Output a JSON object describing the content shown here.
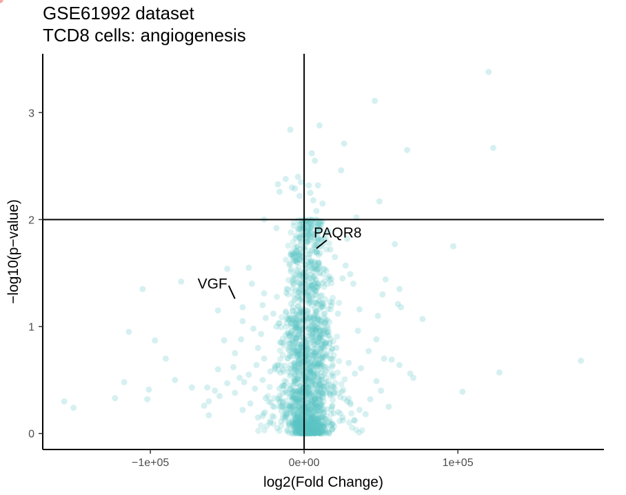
{
  "chart_data": {
    "type": "scatter",
    "title": "GSE61992 dataset",
    "subtitle": "TCD8 cells: angiogenesis",
    "xlabel": "log2(Fold Change)",
    "ylabel": "−log10(p−value)",
    "xlim": [
      -170000,
      195000
    ],
    "ylim": [
      -0.15,
      3.55
    ],
    "x_ticks": [
      {
        "value": -100000,
        "label": "−1e+05"
      },
      {
        "value": 0,
        "label": "0e+00"
      },
      {
        "value": 100000,
        "label": "1e+05"
      }
    ],
    "y_ticks": [
      {
        "value": 0,
        "label": "0"
      },
      {
        "value": 1,
        "label": "1"
      },
      {
        "value": 2,
        "label": "2"
      },
      {
        "value": 3,
        "label": "3"
      }
    ],
    "reference_lines": {
      "vertical_x": 0,
      "horizontal_y": 2
    },
    "colors": {
      "points": "#5bc3c6",
      "highlight": "#f4a7a0",
      "axis": "#000000"
    },
    "grid": false,
    "highlighted_points": [
      {
        "x": -45000,
        "y": 1.24
      },
      {
        "x": 8000,
        "y": 1.73
      },
      {
        "x": 47000,
        "y": 0.72
      },
      {
        "x": 60000,
        "y": 0.52
      },
      {
        "x": -13000,
        "y": 1.35
      },
      {
        "x": -14000,
        "y": 0.7
      },
      {
        "x": 12000,
        "y": 0.95
      },
      {
        "x": -5000,
        "y": 0.22
      }
    ],
    "labels": [
      {
        "text": "VGF",
        "x": -45000,
        "y": 1.24
      },
      {
        "text": "PAQR8",
        "x": 8000,
        "y": 1.73
      }
    ],
    "points": [
      [
        120000,
        3.38
      ],
      [
        46000,
        3.11
      ],
      [
        -9000,
        2.84
      ],
      [
        10000,
        2.88
      ],
      [
        26000,
        2.71
      ],
      [
        67000,
        2.65
      ],
      [
        123000,
        2.67
      ],
      [
        24000,
        2.46
      ],
      [
        -16000,
        2.26
      ],
      [
        -17000,
        2.33
      ],
      [
        -12000,
        2.38
      ],
      [
        -6000,
        2.29
      ],
      [
        -4000,
        2.4
      ],
      [
        5000,
        2.62
      ],
      [
        7000,
        2.55
      ],
      [
        49000,
        2.17
      ],
      [
        34000,
        2.02
      ],
      [
        12000,
        2.15
      ],
      [
        -26000,
        2.0
      ],
      [
        -18000,
        1.92
      ],
      [
        -8000,
        2.3
      ],
      [
        -3000,
        2.22
      ],
      [
        -2000,
        2.35
      ],
      [
        3000,
        2.32
      ],
      [
        4000,
        2.25
      ],
      [
        6000,
        2.18
      ],
      [
        8000,
        2.08
      ],
      [
        9000,
        2.32
      ],
      [
        11000,
        1.98
      ],
      [
        97000,
        1.75
      ],
      [
        59000,
        1.77
      ],
      [
        -36000,
        1.55
      ],
      [
        -50000,
        1.54
      ],
      [
        -105000,
        1.35
      ],
      [
        -80000,
        1.42
      ],
      [
        -34000,
        1.4
      ],
      [
        -26000,
        1.31
      ],
      [
        -40000,
        1.18
      ],
      [
        -27000,
        1.2
      ],
      [
        -56000,
        1.15
      ],
      [
        -40000,
        1.05
      ],
      [
        -25000,
        1.08
      ],
      [
        -20000,
        1.12
      ],
      [
        -33000,
        0.98
      ],
      [
        -28000,
        0.93
      ],
      [
        -41000,
        0.88
      ],
      [
        -52000,
        0.87
      ],
      [
        -30000,
        0.8
      ],
      [
        -45000,
        0.75
      ],
      [
        -26000,
        0.7
      ],
      [
        -31000,
        0.64
      ],
      [
        -46000,
        0.62
      ],
      [
        -36000,
        0.55
      ],
      [
        -22000,
        0.58
      ],
      [
        -27000,
        0.5
      ],
      [
        -39000,
        0.48
      ],
      [
        -32000,
        0.42
      ],
      [
        -45000,
        0.38
      ],
      [
        -25000,
        0.33
      ],
      [
        -35000,
        0.28
      ],
      [
        -40000,
        0.22
      ],
      [
        -30000,
        0.15
      ],
      [
        -22000,
        0.1
      ],
      [
        -63000,
        0.43
      ],
      [
        -58000,
        0.4
      ],
      [
        -62000,
        0.3
      ],
      [
        -65000,
        0.26
      ],
      [
        -62000,
        0.17
      ],
      [
        -55000,
        0.35
      ],
      [
        -50000,
        0.47
      ],
      [
        -42000,
        0.52
      ],
      [
        -114000,
        0.95
      ],
      [
        -97000,
        0.87
      ],
      [
        -90000,
        0.7
      ],
      [
        -84000,
        0.5
      ],
      [
        -117000,
        0.48
      ],
      [
        -101000,
        0.41
      ],
      [
        -102000,
        0.32
      ],
      [
        -123000,
        0.33
      ],
      [
        -156000,
        0.3
      ],
      [
        -150000,
        0.24
      ],
      [
        -73000,
        0.43
      ],
      [
        -56000,
        0.6
      ],
      [
        -18000,
        1.0
      ],
      [
        -15000,
        0.85
      ],
      [
        -19000,
        0.6
      ],
      [
        -16000,
        0.42
      ],
      [
        -15000,
        0.25
      ],
      [
        -12000,
        0.15
      ],
      [
        -10000,
        0.08
      ],
      [
        62000,
        1.35
      ],
      [
        53000,
        1.44
      ],
      [
        51000,
        1.3
      ],
      [
        61000,
        1.21
      ],
      [
        63000,
        1.18
      ],
      [
        77000,
        1.07
      ],
      [
        48000,
        1.1
      ],
      [
        36000,
        1.16
      ],
      [
        32000,
        1.4
      ],
      [
        30000,
        1.49
      ],
      [
        27000,
        1.57
      ],
      [
        25000,
        1.45
      ],
      [
        20000,
        1.65
      ],
      [
        17000,
        1.72
      ],
      [
        14000,
        1.87
      ],
      [
        28000,
        1.82
      ],
      [
        22000,
        1.12
      ],
      [
        35000,
        0.96
      ],
      [
        47000,
        0.88
      ],
      [
        52000,
        0.7
      ],
      [
        62000,
        0.64
      ],
      [
        57000,
        0.69
      ],
      [
        42000,
        0.77
      ],
      [
        37000,
        0.61
      ],
      [
        33000,
        0.56
      ],
      [
        29000,
        0.66
      ],
      [
        47000,
        0.49
      ],
      [
        50000,
        0.4
      ],
      [
        43000,
        0.32
      ],
      [
        55000,
        0.25
      ],
      [
        36000,
        0.22
      ],
      [
        28000,
        0.3
      ],
      [
        25000,
        0.15
      ],
      [
        33000,
        0.12
      ],
      [
        40000,
        0.18
      ],
      [
        71000,
        0.52
      ],
      [
        69000,
        0.56
      ],
      [
        103000,
        0.39
      ],
      [
        127000,
        0.57
      ],
      [
        180000,
        0.68
      ],
      [
        17000,
        1.23
      ],
      [
        15000,
        1.0
      ],
      [
        14000,
        0.84
      ],
      [
        21000,
        0.8
      ],
      [
        19000,
        0.53
      ],
      [
        16000,
        0.4
      ],
      [
        18000,
        0.25
      ],
      [
        13000,
        0.14
      ],
      [
        10000,
        0.06
      ]
    ]
  }
}
